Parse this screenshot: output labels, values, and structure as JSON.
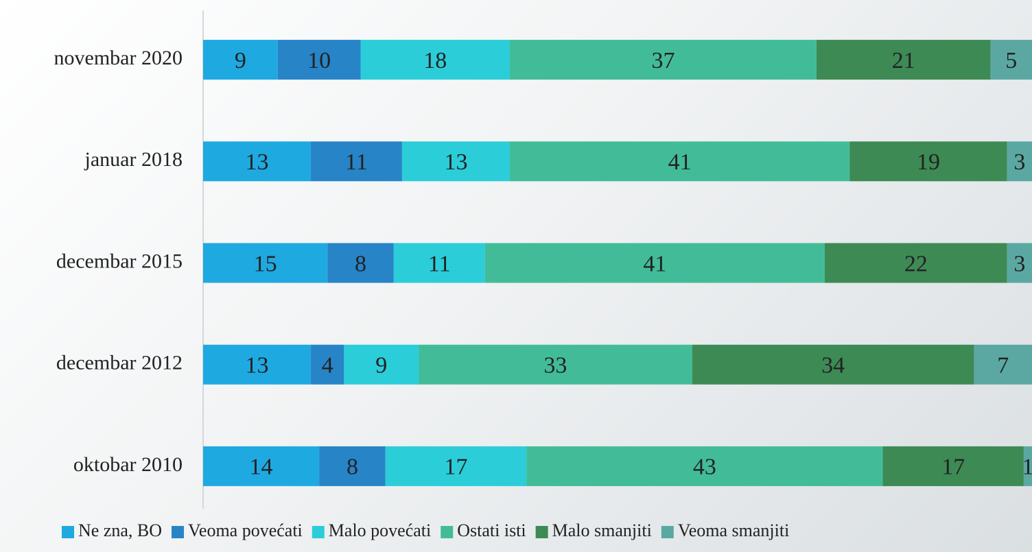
{
  "chart_data": {
    "type": "stacked-bar-horizontal",
    "categories": [
      "novembar 2020",
      "januar 2018",
      "decembar 2015",
      "decembar 2012",
      "oktobar 2010"
    ],
    "xlim": [
      0,
      100
    ],
    "series": [
      {
        "name": "Ne zna, BO",
        "color": "#1fa9e1",
        "values": [
          9,
          13,
          15,
          13,
          14
        ]
      },
      {
        "name": "Veoma povećati",
        "color": "#2784c7",
        "values": [
          10,
          11,
          8,
          4,
          8
        ]
      },
      {
        "name": "Malo povećati",
        "color": "#2bcdd9",
        "values": [
          18,
          13,
          11,
          9,
          17
        ]
      },
      {
        "name": "Ostati isti",
        "color": "#42bc98",
        "values": [
          37,
          41,
          41,
          33,
          43
        ]
      },
      {
        "name": "Malo smanjiti",
        "color": "#3d8a55",
        "values": [
          21,
          19,
          22,
          34,
          17
        ]
      },
      {
        "name": "Veoma smanjiti",
        "color": "#5ba8a3",
        "values": [
          5,
          3,
          3,
          7,
          1
        ]
      }
    ],
    "legend": "bottom"
  }
}
